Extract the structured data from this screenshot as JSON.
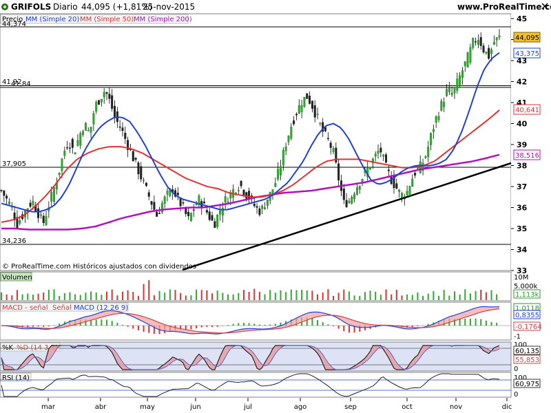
{
  "header": {
    "ticker": "GRIFOLS",
    "period": "Diario",
    "price_change": "44,095 (+1,81%)",
    "date": "25-nov-2015",
    "site": "www.ProRealTime.com",
    "copyright": "© ProRealTime.com Históricos ajustados con dividendos",
    "close_icon": "close-icon"
  },
  "legend_main": [
    {
      "label": "Precio",
      "color": "#000000"
    },
    {
      "label": "MM (Simple 20)",
      "color": "#1f3fd8"
    },
    {
      "label": "MM (Simple 50)",
      "color": "#e53030"
    },
    {
      "label": "MM (Simple 200)",
      "color": "#b010c0"
    }
  ],
  "price_labels": {
    "top_partial": "44,374",
    "hline_a": "41,92",
    "hline_b": "41,84",
    "hline_c": "37,905",
    "hline_d": "34,236"
  },
  "right_badges": {
    "close": "44,095",
    "mm20": "43,375",
    "mm50": "40,641",
    "mm200": "38,516"
  },
  "y_ticks": [
    "45",
    "44",
    "43",
    "42",
    "41",
    "40",
    "39",
    "38",
    "37",
    "36",
    "35",
    "34",
    "33"
  ],
  "x_ticks": [
    "mar",
    "abr",
    "may",
    "jun",
    "jul",
    "ago",
    "sep",
    "oct",
    "nov",
    "dic"
  ],
  "volume_panel": {
    "title": "Volumen",
    "ticks": [
      "10M",
      "5.000k"
    ],
    "badge": "1,113k"
  },
  "macd_panel": {
    "legend": [
      "MACD - señal",
      "Señal",
      "MACD (12 26 9)"
    ],
    "ticks": [
      "1",
      "0",
      "-1"
    ],
    "badges": [
      "1,0118",
      "0,8355",
      "-0,1764"
    ]
  },
  "stoch_panel": {
    "legend": [
      "%K",
      "%D (14 3 5)"
    ],
    "ticks": [
      "100",
      "0"
    ],
    "badges": [
      "60,135",
      "55,853"
    ]
  },
  "rsi_panel": {
    "legend": [
      "RSI (14)"
    ],
    "ticks": [
      "100",
      "0"
    ],
    "badges": [
      "60,975"
    ]
  },
  "chart_data": {
    "type": "candlestick",
    "title": "GRIFOLS Diario",
    "ylim": [
      33,
      45.5
    ],
    "x_months": [
      "mar",
      "abr",
      "may",
      "jun",
      "jul",
      "ago",
      "sep",
      "oct",
      "nov",
      "dic"
    ],
    "close_series": [
      36.8,
      36.4,
      36.0,
      35.2,
      35.6,
      36.0,
      36.3,
      35.8,
      35.2,
      36.0,
      36.8,
      37.6,
      38.6,
      39.2,
      38.6,
      39.4,
      40.0,
      39.5,
      40.8,
      41.2,
      41.6,
      41.0,
      40.2,
      39.8,
      39.2,
      38.6,
      38.0,
      37.4,
      36.8,
      36.2,
      35.6,
      36.2,
      36.6,
      36.9,
      36.4,
      36.0,
      35.4,
      35.9,
      36.4,
      36.1,
      35.6,
      35.2,
      35.8,
      36.3,
      36.6,
      36.9,
      37.1,
      36.7,
      36.4,
      36.0,
      35.8,
      36.3,
      36.7,
      37.3,
      38.2,
      39.2,
      40.0,
      40.6,
      41.1,
      41.3,
      40.8,
      40.2,
      39.6,
      39.2,
      38.6,
      37.4,
      36.2,
      36.3,
      36.8,
      37.2,
      37.6,
      38.0,
      38.4,
      38.8,
      38.0,
      37.4,
      37.0,
      36.6,
      36.6,
      37.3,
      37.8,
      38.0,
      38.6,
      39.6,
      40.4,
      41.0,
      41.6,
      41.4,
      42.0,
      42.6,
      43.2,
      43.9,
      44.1,
      43.5,
      43.2,
      43.9,
      44.095
    ],
    "mm20": [
      36.2,
      36.1,
      36.0,
      35.9,
      35.8,
      35.8,
      35.9,
      36.1,
      36.5,
      37.1,
      37.9,
      38.7,
      39.3,
      39.8,
      40.1,
      40.3,
      40.3,
      40.1,
      39.6,
      39.0,
      38.3,
      37.6,
      37.0,
      36.6,
      36.4,
      36.3,
      36.2,
      36.1,
      36.0,
      35.9,
      35.9,
      36.0,
      36.1,
      36.2,
      36.3,
      36.4,
      36.6,
      36.9,
      37.2,
      37.7,
      38.2,
      38.9,
      39.5,
      39.9,
      40.0,
      39.8,
      39.3,
      38.6,
      37.9,
      37.3,
      37.1,
      37.2,
      37.4,
      37.7,
      37.9,
      38.0,
      38.0,
      38.0,
      38.1,
      38.3,
      38.8,
      39.6,
      40.6,
      41.7,
      42.6,
      43.1,
      43.375
    ],
    "mm50": [
      35.3,
      35.4,
      35.6,
      36.0,
      36.5,
      37.1,
      37.8,
      38.3,
      38.6,
      38.8,
      38.9,
      38.9,
      38.8,
      38.6,
      38.3,
      38.0,
      37.7,
      37.4,
      37.2,
      37.0,
      36.9,
      36.7,
      36.6,
      36.5,
      36.5,
      36.6,
      36.8,
      37.1,
      37.5,
      37.9,
      38.2,
      38.3,
      38.3,
      38.3,
      38.2,
      38.1,
      38.0,
      37.9,
      37.9,
      38.0,
      38.2,
      38.6,
      39.0,
      39.4,
      39.8,
      40.2,
      40.641
    ],
    "mm200": [
      35.0,
      35.0,
      34.95,
      34.95,
      34.95,
      34.95,
      35.0,
      35.1,
      35.3,
      35.5,
      35.65,
      35.8,
      35.9,
      35.95,
      36.0,
      36.0,
      36.1,
      36.2,
      36.35,
      36.5,
      36.6,
      36.7,
      36.75,
      36.8,
      36.9,
      37.0,
      37.1,
      37.2,
      37.35,
      37.5,
      37.65,
      37.8,
      37.9,
      38.0,
      38.1,
      38.2,
      38.35,
      38.516
    ],
    "hlines": [
      41.92,
      41.84,
      37.905,
      34.236
    ],
    "trendline": "support from ~32.9 (late may) to ~38 (end of nov)"
  }
}
